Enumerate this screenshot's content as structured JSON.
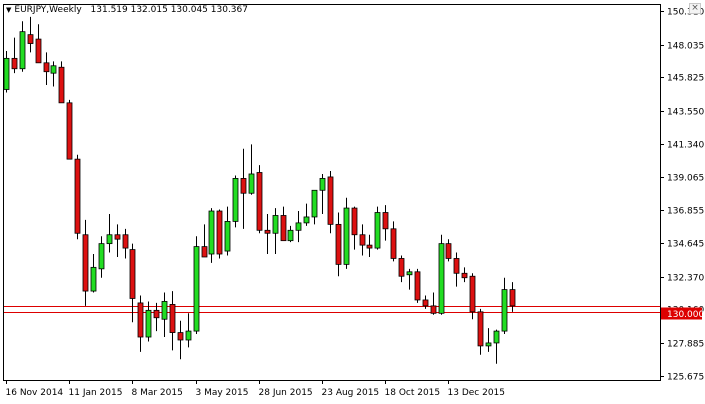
{
  "window": {
    "close_glyph": "×"
  },
  "header": {
    "symbol": "EURJPY,Weekly",
    "ohlc": "131.519 132.015 130.045 130.367"
  },
  "current_price_label": "130.000",
  "colors": {
    "bull": "#22dd22",
    "bear": "#dd1111",
    "wick": "#000000",
    "price_line": "#dd0000",
    "frame": "#000000"
  },
  "chart_data": {
    "type": "candlestick",
    "y_ticks": [
      "150.310",
      "148.035",
      "145.825",
      "143.550",
      "141.340",
      "139.065",
      "136.855",
      "134.645",
      "132.370",
      "130.160",
      "127.885",
      "125.675"
    ],
    "ylim": [
      125.4,
      150.7
    ],
    "x_ticks": [
      "16 Nov 2014",
      "11 Jan 2015",
      "8 Mar 2015",
      "3 May 2015",
      "28 Jun 2015",
      "23 Aug 2015",
      "18 Oct 2015",
      "13 Dec 2015"
    ],
    "horizontal_lines": [
      130.0,
      130.367
    ],
    "candles": [
      [
        145.0,
        147.6,
        144.8,
        147.1
      ],
      [
        147.1,
        148.5,
        146.1,
        146.4
      ],
      [
        146.4,
        149.6,
        146.2,
        148.9
      ],
      [
        148.7,
        149.9,
        147.5,
        148.1
      ],
      [
        148.4,
        149.4,
        146.8,
        146.8
      ],
      [
        146.8,
        147.5,
        145.3,
        146.2
      ],
      [
        146.1,
        146.9,
        145.2,
        146.6
      ],
      [
        146.5,
        146.9,
        144.1,
        144.1
      ],
      [
        144.1,
        144.3,
        140.3,
        140.3
      ],
      [
        140.3,
        140.6,
        134.9,
        135.3
      ],
      [
        135.2,
        136.2,
        130.4,
        131.4
      ],
      [
        131.4,
        133.9,
        131.3,
        133.0
      ],
      [
        132.9,
        135.1,
        132.3,
        134.6
      ],
      [
        134.6,
        136.6,
        134.0,
        135.2
      ],
      [
        135.2,
        135.9,
        133.7,
        134.9
      ],
      [
        135.2,
        135.6,
        133.6,
        134.3
      ],
      [
        134.2,
        134.6,
        129.3,
        130.9
      ],
      [
        130.6,
        131.1,
        127.3,
        128.3
      ],
      [
        128.3,
        130.7,
        128.0,
        130.1
      ],
      [
        130.1,
        130.6,
        128.7,
        129.6
      ],
      [
        129.5,
        131.3,
        128.3,
        130.7
      ],
      [
        130.5,
        131.4,
        127.4,
        128.6
      ],
      [
        128.6,
        129.4,
        126.8,
        128.1
      ],
      [
        128.1,
        129.9,
        127.6,
        128.7
      ],
      [
        128.7,
        135.1,
        128.5,
        134.4
      ],
      [
        134.4,
        135.9,
        133.7,
        133.7
      ],
      [
        133.9,
        137.0,
        133.3,
        136.8
      ],
      [
        136.8,
        136.9,
        133.6,
        133.9
      ],
      [
        134.1,
        137.1,
        133.8,
        136.1
      ],
      [
        136.1,
        139.2,
        135.7,
        139.0
      ],
      [
        139.0,
        141.0,
        135.6,
        138.0
      ],
      [
        138.0,
        141.3,
        137.9,
        139.3
      ],
      [
        139.4,
        139.9,
        135.3,
        135.5
      ],
      [
        135.5,
        136.6,
        133.9,
        135.3
      ],
      [
        135.3,
        137.0,
        133.9,
        136.5
      ],
      [
        136.5,
        137.1,
        134.8,
        134.8
      ],
      [
        134.8,
        135.8,
        134.7,
        135.5
      ],
      [
        135.5,
        136.8,
        134.7,
        136.0
      ],
      [
        136.0,
        137.3,
        135.8,
        136.4
      ],
      [
        136.4,
        138.2,
        135.9,
        138.2
      ],
      [
        138.2,
        139.3,
        136.6,
        139.0
      ],
      [
        139.1,
        139.5,
        135.3,
        135.9
      ],
      [
        135.9,
        136.7,
        132.4,
        133.2
      ],
      [
        133.2,
        137.7,
        132.9,
        137.0
      ],
      [
        137.0,
        137.1,
        134.2,
        135.2
      ],
      [
        135.2,
        135.9,
        133.8,
        134.5
      ],
      [
        134.5,
        135.2,
        133.7,
        134.3
      ],
      [
        134.3,
        137.1,
        134.2,
        136.7
      ],
      [
        136.7,
        137.2,
        134.8,
        135.6
      ],
      [
        135.6,
        136.1,
        133.4,
        133.6
      ],
      [
        133.6,
        133.8,
        132.0,
        132.4
      ],
      [
        132.5,
        132.9,
        131.5,
        132.7
      ],
      [
        132.7,
        132.9,
        130.6,
        130.8
      ],
      [
        130.8,
        131.1,
        130.2,
        130.4
      ],
      [
        130.4,
        131.3,
        129.8,
        129.9
      ],
      [
        129.9,
        135.2,
        129.8,
        134.6
      ],
      [
        134.6,
        134.9,
        133.4,
        133.6
      ],
      [
        133.6,
        134.0,
        131.7,
        132.6
      ],
      [
        132.6,
        133.0,
        132.0,
        132.3
      ],
      [
        132.4,
        132.6,
        129.5,
        130.0
      ],
      [
        130.0,
        130.2,
        127.1,
        127.7
      ],
      [
        127.7,
        128.9,
        127.3,
        127.9
      ],
      [
        127.9,
        128.8,
        126.5,
        128.7
      ],
      [
        128.7,
        132.3,
        128.5,
        131.5
      ],
      [
        131.5,
        132.0,
        130.0,
        130.4
      ]
    ]
  }
}
